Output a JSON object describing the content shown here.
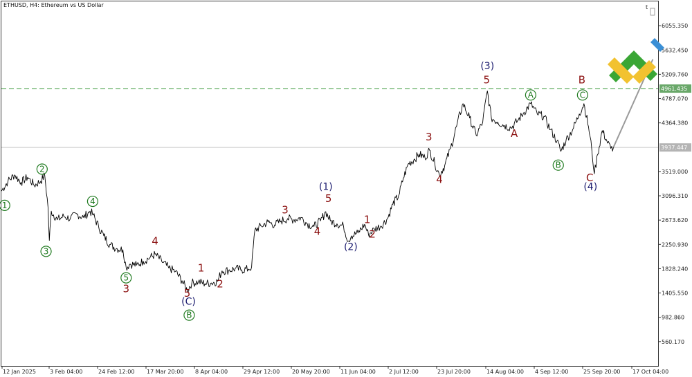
{
  "chart_title": "ETHUSD, H4:  Ethereum vs US Dollar",
  "corner_mark": "t",
  "colors": {
    "price_line": "#000000",
    "grid_level": "#c8c8c8",
    "resistance_dashed": "#6fb36f",
    "resistance_tag_bg": "#6aa86a",
    "current_tag_bg": "#b4b4b4",
    "wave_red": "#8b1010",
    "wave_blue": "#1a1a6e",
    "wave_green": "#1f7a1f",
    "forecast_line": "#9a9a9a",
    "logo_green": "#3aa635",
    "logo_yellow": "#f2c230",
    "logo_blue": "#3a8fd6"
  },
  "chart_data": {
    "type": "line",
    "symbol": "ETHUSD",
    "timeframe": "H4",
    "title": "ETHUSD, H4:  Ethereum vs US Dollar",
    "xlabel": "",
    "ylabel": "",
    "ylim": [
      137,
      6478
    ],
    "x_ticks": [
      "12 Jan 2025",
      "3 Feb 04:00",
      "24 Feb 12:00",
      "17 Mar 20:00",
      "8 Apr 04:00",
      "29 Apr 12:00",
      "20 May 20:00",
      "11 Jun 04:00",
      "2 Jul 12:00",
      "23 Jul 20:00",
      "14 Aug 04:00",
      "4 Sep 12:00",
      "25 Sep 20:00",
      "17 Oct 04:00"
    ],
    "y_ticks": [
      "6055.350",
      "5632.450",
      "5209.760",
      "4787.070",
      "4364.380",
      "3519.000",
      "3096.310",
      "2673.620",
      "2250.930",
      "1828.240",
      "1405.550",
      "982.860",
      "560.170"
    ],
    "resistance_level": {
      "value": 4961.435,
      "label": "4961.435"
    },
    "current_price": {
      "value": 3937,
      "label": "3937.447"
    },
    "grid": false,
    "series": [
      {
        "values": [
          {
            "t": 0.0,
            "v": 3180
          },
          {
            "t": 0.01,
            "v": 3350
          },
          {
            "t": 0.02,
            "v": 3460
          },
          {
            "t": 0.03,
            "v": 3330
          },
          {
            "t": 0.04,
            "v": 3420
          },
          {
            "t": 0.05,
            "v": 3280
          },
          {
            "t": 0.06,
            "v": 3350
          },
          {
            "t": 0.066,
            "v": 3460
          },
          {
            "t": 0.071,
            "v": 2900
          },
          {
            "t": 0.073,
            "v": 2320
          },
          {
            "t": 0.076,
            "v": 2830
          },
          {
            "t": 0.085,
            "v": 2680
          },
          {
            "t": 0.095,
            "v": 2740
          },
          {
            "t": 0.105,
            "v": 2700
          },
          {
            "t": 0.115,
            "v": 2780
          },
          {
            "t": 0.125,
            "v": 2720
          },
          {
            "t": 0.135,
            "v": 2830
          },
          {
            "t": 0.14,
            "v": 2760
          },
          {
            "t": 0.148,
            "v": 2560
          },
          {
            "t": 0.156,
            "v": 2400
          },
          {
            "t": 0.165,
            "v": 2250
          },
          {
            "t": 0.175,
            "v": 2180
          },
          {
            "t": 0.185,
            "v": 2160
          },
          {
            "t": 0.19,
            "v": 1850
          },
          {
            "t": 0.196,
            "v": 1910
          },
          {
            "t": 0.206,
            "v": 1890
          },
          {
            "t": 0.216,
            "v": 1960
          },
          {
            "t": 0.226,
            "v": 2020
          },
          {
            "t": 0.234,
            "v": 2080
          },
          {
            "t": 0.244,
            "v": 1960
          },
          {
            "t": 0.255,
            "v": 1840
          },
          {
            "t": 0.265,
            "v": 1780
          },
          {
            "t": 0.275,
            "v": 1620
          },
          {
            "t": 0.283,
            "v": 1450
          },
          {
            "t": 0.29,
            "v": 1580
          },
          {
            "t": 0.3,
            "v": 1600
          },
          {
            "t": 0.31,
            "v": 1570
          },
          {
            "t": 0.32,
            "v": 1580
          },
          {
            "t": 0.329,
            "v": 1610
          },
          {
            "t": 0.336,
            "v": 1790
          },
          {
            "t": 0.346,
            "v": 1800
          },
          {
            "t": 0.356,
            "v": 1830
          },
          {
            "t": 0.366,
            "v": 1810
          },
          {
            "t": 0.376,
            "v": 1820
          },
          {
            "t": 0.381,
            "v": 1860
          },
          {
            "t": 0.386,
            "v": 2500
          },
          {
            "t": 0.396,
            "v": 2570
          },
          {
            "t": 0.406,
            "v": 2640
          },
          {
            "t": 0.416,
            "v": 2590
          },
          {
            "t": 0.426,
            "v": 2660
          },
          {
            "t": 0.436,
            "v": 2700
          },
          {
            "t": 0.446,
            "v": 2680
          },
          {
            "t": 0.456,
            "v": 2720
          },
          {
            "t": 0.466,
            "v": 2610
          },
          {
            "t": 0.476,
            "v": 2560
          },
          {
            "t": 0.486,
            "v": 2660
          },
          {
            "t": 0.494,
            "v": 2820
          },
          {
            "t": 0.501,
            "v": 2660
          },
          {
            "t": 0.511,
            "v": 2610
          },
          {
            "t": 0.521,
            "v": 2570
          },
          {
            "t": 0.528,
            "v": 2310
          },
          {
            "t": 0.533,
            "v": 2400
          },
          {
            "t": 0.543,
            "v": 2450
          },
          {
            "t": 0.553,
            "v": 2600
          },
          {
            "t": 0.559,
            "v": 2420
          },
          {
            "t": 0.568,
            "v": 2520
          },
          {
            "t": 0.578,
            "v": 2570
          },
          {
            "t": 0.588,
            "v": 2700
          },
          {
            "t": 0.596,
            "v": 2950
          },
          {
            "t": 0.605,
            "v": 3100
          },
          {
            "t": 0.612,
            "v": 3400
          },
          {
            "t": 0.62,
            "v": 3660
          },
          {
            "t": 0.628,
            "v": 3720
          },
          {
            "t": 0.636,
            "v": 3820
          },
          {
            "t": 0.645,
            "v": 3760
          },
          {
            "t": 0.652,
            "v": 3890
          },
          {
            "t": 0.66,
            "v": 3660
          },
          {
            "t": 0.667,
            "v": 3460
          },
          {
            "t": 0.675,
            "v": 3620
          },
          {
            "t": 0.684,
            "v": 3920
          },
          {
            "t": 0.693,
            "v": 4300
          },
          {
            "t": 0.703,
            "v": 4700
          },
          {
            "t": 0.713,
            "v": 4450
          },
          {
            "t": 0.723,
            "v": 4150
          },
          {
            "t": 0.733,
            "v": 4380
          },
          {
            "t": 0.74,
            "v": 4920
          },
          {
            "t": 0.746,
            "v": 4450
          },
          {
            "t": 0.756,
            "v": 4380
          },
          {
            "t": 0.766,
            "v": 4320
          },
          {
            "t": 0.776,
            "v": 4280
          },
          {
            "t": 0.786,
            "v": 4400
          },
          {
            "t": 0.796,
            "v": 4550
          },
          {
            "t": 0.806,
            "v": 4700
          },
          {
            "t": 0.816,
            "v": 4520
          },
          {
            "t": 0.826,
            "v": 4480
          },
          {
            "t": 0.836,
            "v": 4250
          },
          {
            "t": 0.846,
            "v": 4050
          },
          {
            "t": 0.852,
            "v": 3870
          },
          {
            "t": 0.86,
            "v": 4070
          },
          {
            "t": 0.87,
            "v": 4250
          },
          {
            "t": 0.88,
            "v": 4520
          },
          {
            "t": 0.887,
            "v": 4700
          },
          {
            "t": 0.894,
            "v": 4300
          },
          {
            "t": 0.899,
            "v": 3900
          },
          {
            "t": 0.903,
            "v": 3480
          },
          {
            "t": 0.908,
            "v": 3820
          },
          {
            "t": 0.915,
            "v": 4230
          },
          {
            "t": 0.922,
            "v": 4050
          },
          {
            "t": 0.928,
            "v": 3920
          },
          {
            "t": 0.932,
            "v": 3940
          }
        ]
      }
    ],
    "annotations": {
      "red": [
        {
          "text": "3",
          "t": 0.19,
          "v": 1420
        },
        {
          "text": "4",
          "t": 0.234,
          "v": 2250
        },
        {
          "text": "5",
          "t": 0.283,
          "v": 1340
        },
        {
          "text": "1",
          "t": 0.304,
          "v": 1780
        },
        {
          "text": "2",
          "t": 0.333,
          "v": 1500
        },
        {
          "text": "3",
          "t": 0.432,
          "v": 2790
        },
        {
          "text": "4",
          "t": 0.481,
          "v": 2420
        },
        {
          "text": "5",
          "t": 0.498,
          "v": 2990
        },
        {
          "text": "1",
          "t": 0.557,
          "v": 2620
        },
        {
          "text": "2",
          "t": 0.565,
          "v": 2370
        },
        {
          "text": "3",
          "t": 0.651,
          "v": 4060
        },
        {
          "text": "4",
          "t": 0.667,
          "v": 3320
        },
        {
          "text": "5",
          "t": 0.739,
          "v": 5050
        },
        {
          "text": "A",
          "t": 0.781,
          "v": 4120
        },
        {
          "text": "B",
          "t": 0.884,
          "v": 5050
        },
        {
          "text": "C",
          "t": 0.896,
          "v": 3350
        }
      ],
      "blue": [
        {
          "text": "(C)",
          "t": 0.285,
          "v": 1200
        },
        {
          "text": "(1)",
          "t": 0.494,
          "v": 3200
        },
        {
          "text": "(2)",
          "t": 0.532,
          "v": 2150
        },
        {
          "text": "(3)",
          "t": 0.74,
          "v": 5300
        },
        {
          "text": "(4)",
          "t": 0.897,
          "v": 3200
        }
      ],
      "green": [
        {
          "text": "1",
          "t": 0.005,
          "v": 2930
        },
        {
          "text": "2",
          "t": 0.062,
          "v": 3560
        },
        {
          "text": "3",
          "t": 0.068,
          "v": 2130
        },
        {
          "text": "4",
          "t": 0.139,
          "v": 3000
        },
        {
          "text": "5",
          "t": 0.19,
          "v": 1670
        },
        {
          "text": "B",
          "t": 0.286,
          "v": 1020
        },
        {
          "text": "A",
          "t": 0.806,
          "v": 4850
        },
        {
          "text": "B",
          "t": 0.848,
          "v": 3630
        },
        {
          "text": "C",
          "t": 0.885,
          "v": 4850
        }
      ]
    },
    "forecast": [
      {
        "t": 0.932,
        "v": 3940
      },
      {
        "t": 0.992,
        "v": 5470
      }
    ]
  }
}
